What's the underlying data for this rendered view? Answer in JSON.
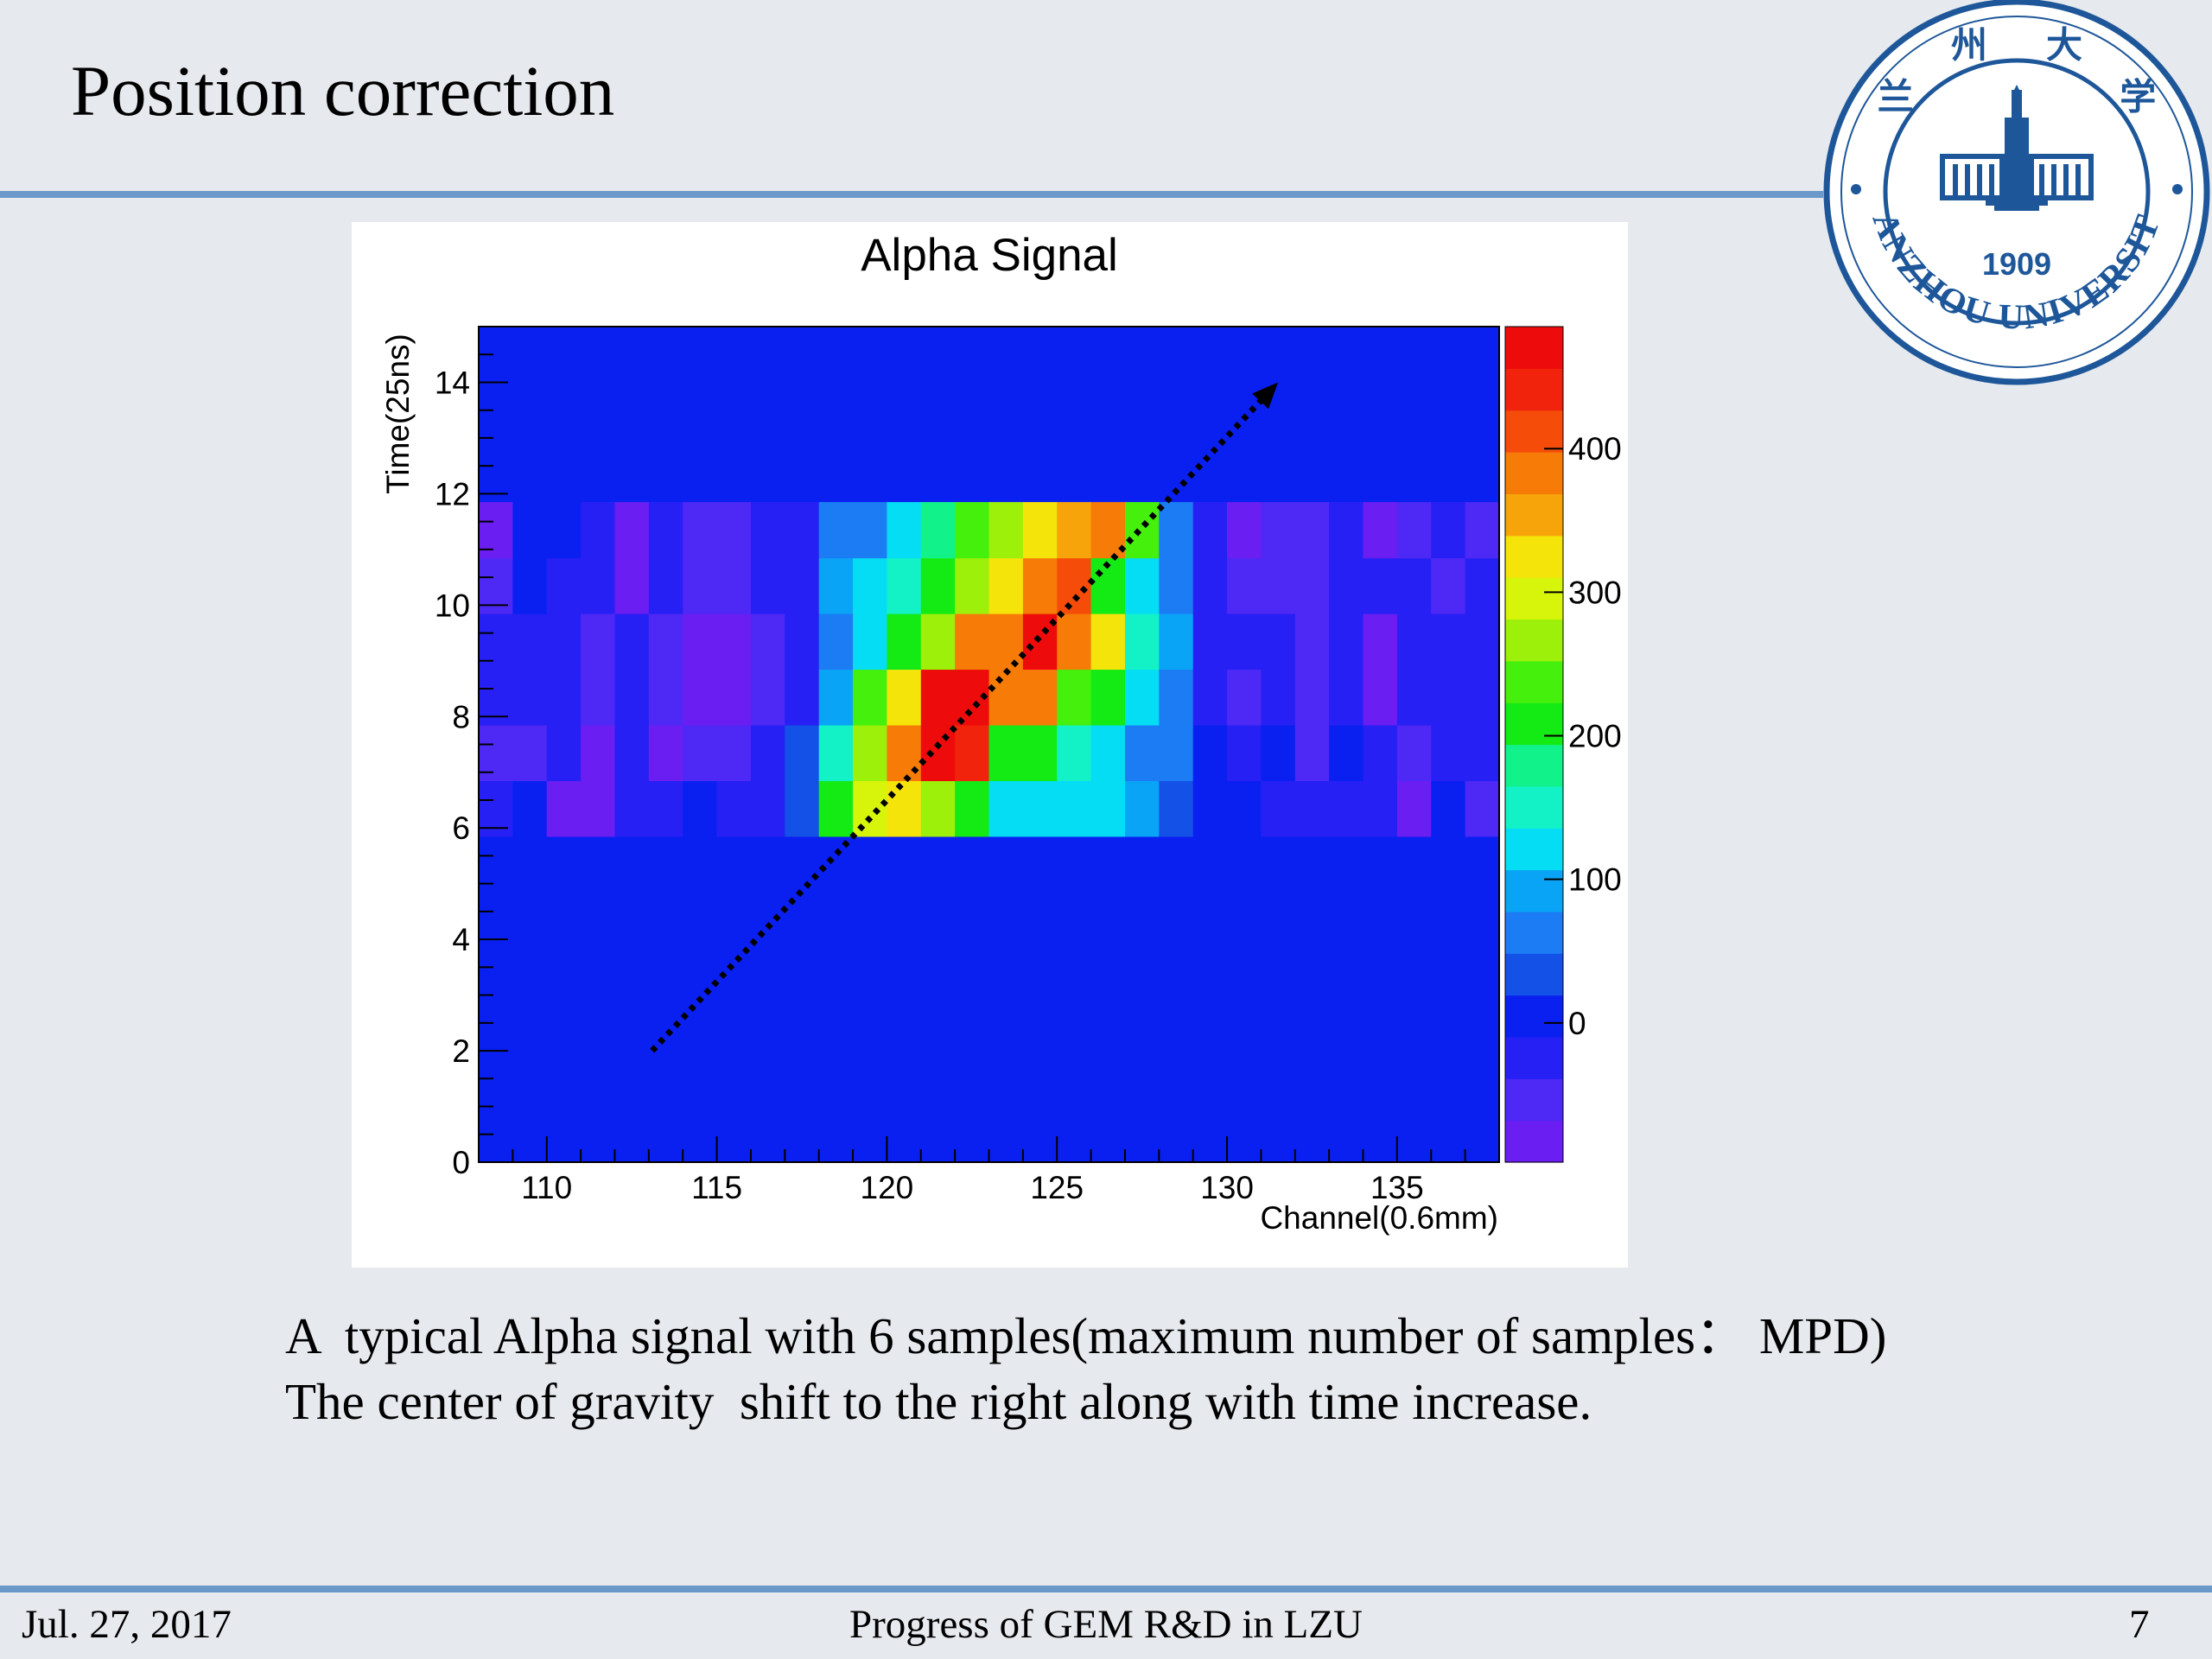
{
  "slide": {
    "title": "Position correction",
    "caption_line1": "A  typical Alpha signal with 6 samples(maximum number of samples： MPD)",
    "caption_line2": "The center of gravity  shift to the right along with time increase."
  },
  "logo": {
    "name_cn": "兰州大学",
    "name_en": "LANZHOU UNIVERSITY",
    "year": "1909",
    "color": "#1e5799"
  },
  "footer": {
    "date": "Jul. 27, 2017",
    "center": "Progress of GEM R&D in LZU",
    "page": "7"
  },
  "chart_data": {
    "type": "heatmap",
    "title": "Alpha Signal",
    "xlabel": "Channel(0.6mm)",
    "ylabel": "Time(25ns)",
    "xlim": [
      108,
      138
    ],
    "ylim": [
      0,
      15
    ],
    "x_ticks": [
      110,
      115,
      120,
      125,
      130,
      135
    ],
    "y_ticks": [
      0,
      2,
      4,
      6,
      8,
      10,
      12,
      14
    ],
    "colorbar": {
      "min": -97,
      "max": 485,
      "ticks": [
        0,
        100,
        200,
        300,
        400
      ]
    },
    "background_value": 10,
    "x_start": 108,
    "y_rows": [
      6,
      7,
      8,
      9,
      10,
      11
    ],
    "values": [
      [
        -30,
        10,
        -70,
        -70,
        -30,
        -30,
        10,
        -30,
        -30,
        40,
        220,
        310,
        320,
        270,
        210,
        130,
        130,
        110,
        110,
        80,
        40,
        10,
        10,
        -30,
        -30,
        -30,
        -30,
        -70,
        10,
        -50
      ],
      [
        -50,
        -50,
        -30,
        -70,
        -30,
        -70,
        -50,
        -50,
        -30,
        40,
        160,
        260,
        370,
        460,
        440,
        210,
        210,
        140,
        130,
        70,
        70,
        10,
        -30,
        10,
        -50,
        10,
        -30,
        -50,
        -30,
        -30
      ],
      [
        -30,
        -30,
        -30,
        -50,
        -30,
        -50,
        -70,
        -70,
        -50,
        -30,
        90,
        230,
        320,
        460,
        460,
        390,
        370,
        230,
        220,
        110,
        70,
        -30,
        -50,
        -30,
        -50,
        -30,
        -70,
        -30,
        -30,
        -30
      ],
      [
        -30,
        -30,
        -30,
        -50,
        -30,
        -50,
        -70,
        -70,
        -50,
        -30,
        50,
        130,
        220,
        280,
        370,
        370,
        470,
        370,
        320,
        160,
        90,
        -30,
        -30,
        -30,
        -50,
        -30,
        -70,
        -30,
        -30,
        -30
      ],
      [
        -50,
        10,
        -30,
        -30,
        -70,
        -30,
        -50,
        -50,
        -30,
        -30,
        90,
        120,
        160,
        210,
        280,
        320,
        390,
        410,
        220,
        110,
        50,
        -30,
        -50,
        -50,
        -50,
        -30,
        -30,
        -30,
        -50,
        -30
      ],
      [
        -70,
        10,
        10,
        -30,
        -70,
        -30,
        -50,
        -50,
        -30,
        -30,
        50,
        70,
        120,
        180,
        250,
        270,
        330,
        350,
        380,
        230,
        50,
        -30,
        -70,
        -50,
        -50,
        -30,
        -70,
        -50,
        -30,
        -50
      ]
    ],
    "annotation": {
      "type": "arrow",
      "from": [
        113.1,
        2.0
      ],
      "to": [
        131.5,
        14.0
      ]
    }
  }
}
